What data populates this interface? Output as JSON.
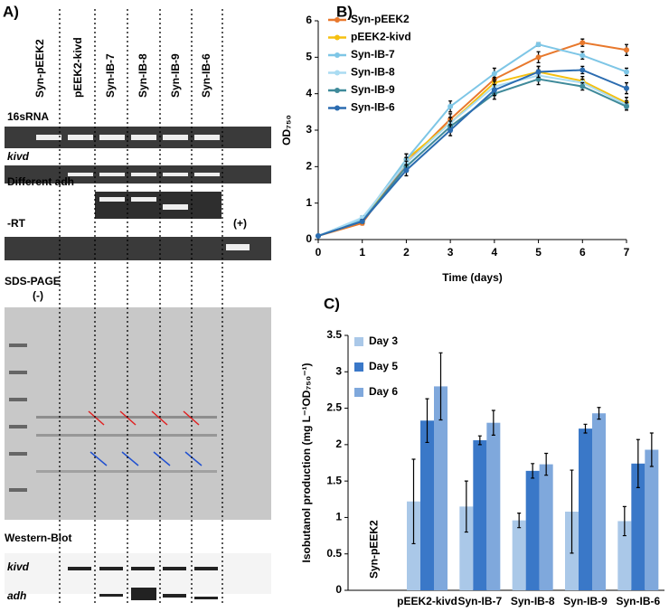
{
  "panel_a": {
    "label": "A)",
    "lanes": [
      "Syn-pEEK2",
      "pEEK2-kivd",
      "Syn-IB-7",
      "Syn-IB-8",
      "Syn-IB-9",
      "Syn-IB-6"
    ],
    "blots": [
      "16sRNA",
      "kivd",
      "Different adh",
      "-RT"
    ],
    "rt_positive": "(+)",
    "sds_page": "SDS-PAGE",
    "negative": "(-)",
    "western_blot": "Western-Blot",
    "western_rows": [
      "kivd",
      "adh"
    ]
  },
  "chart_data": [
    {
      "type": "line",
      "panel_label": "B)",
      "xlabel": "Time (days)",
      "ylabel": "OD₇₅₀",
      "x": [
        0,
        1,
        2,
        3,
        4,
        5,
        6,
        7
      ],
      "xlim": [
        0,
        7
      ],
      "xticks": [
        0,
        1,
        2,
        3,
        4,
        5,
        6,
        7
      ],
      "ylim": [
        0,
        6
      ],
      "yticks": [
        0,
        1,
        2,
        3,
        4,
        5,
        6
      ],
      "legend": "upper left",
      "series": [
        {
          "name": "Syn-pEEK2",
          "color": "#e8782c",
          "values": [
            0.1,
            0.45,
            2.1,
            3.3,
            4.4,
            5.0,
            5.4,
            5.2
          ],
          "errors": [
            0.02,
            0.05,
            0.15,
            0.15,
            0.15,
            0.15,
            0.1,
            0.15
          ]
        },
        {
          "name": "pEEK2-kivd",
          "color": "#f5c010",
          "values": [
            0.1,
            0.5,
            2.2,
            3.2,
            4.3,
            4.6,
            4.35,
            3.75
          ],
          "errors": [
            0.02,
            0.05,
            0.15,
            0.15,
            0.15,
            0.15,
            0.12,
            0.15
          ]
        },
        {
          "name": "Syn-IB-7",
          "color": "#7ec6e6",
          "values": [
            0.1,
            0.55,
            2.2,
            3.65,
            4.55,
            5.35,
            5.05,
            4.6
          ],
          "errors": [
            0.02,
            0.05,
            0.15,
            0.15,
            0.15,
            0.05,
            0.1,
            0.1
          ]
        },
        {
          "name": "Syn-IB-8",
          "color": "#aadcf2",
          "values": [
            0.1,
            0.6,
            2.1,
            3.2,
            4.2,
            4.5,
            4.3,
            3.7
          ],
          "errors": [
            0.02,
            0.05,
            0.15,
            0.15,
            0.15,
            0.15,
            0.1,
            0.1
          ]
        },
        {
          "name": "Syn-IB-9",
          "color": "#3f8a9a",
          "values": [
            0.1,
            0.5,
            2.0,
            3.1,
            4.0,
            4.4,
            4.2,
            3.65
          ],
          "errors": [
            0.02,
            0.05,
            0.15,
            0.15,
            0.15,
            0.15,
            0.1,
            0.1
          ]
        },
        {
          "name": "Syn-IB-6",
          "color": "#2b6cb0",
          "values": [
            0.1,
            0.5,
            1.9,
            3.0,
            4.1,
            4.6,
            4.65,
            4.15
          ],
          "errors": [
            0.02,
            0.05,
            0.15,
            0.15,
            0.15,
            0.15,
            0.1,
            0.15
          ]
        }
      ]
    },
    {
      "type": "bar",
      "panel_label": "C)",
      "ylabel": "Isobutanol production (mg L⁻¹OD₇₅₀⁻¹)",
      "categories": [
        "Syn-pEEK2",
        "pEEK2-kivd",
        "Syn-IB-7",
        "Syn-IB-8",
        "Syn-IB-9",
        "Syn-IB-6"
      ],
      "ylim": [
        0,
        3.5
      ],
      "yticks": [
        0,
        0.5,
        1,
        1.5,
        2,
        2.5,
        3,
        3.5
      ],
      "legend": "upper left",
      "series": [
        {
          "name": "Day 3",
          "color": "#aac8e8",
          "values": [
            0,
            1.22,
            1.15,
            0.96,
            1.08,
            0.95
          ],
          "errors": [
            0,
            0.58,
            0.35,
            0.1,
            0.57,
            0.2
          ]
        },
        {
          "name": "Day 5",
          "color": "#3a78c8",
          "values": [
            0,
            2.33,
            2.06,
            1.64,
            2.22,
            1.74
          ],
          "errors": [
            0,
            0.3,
            0.06,
            0.1,
            0.06,
            0.33
          ]
        },
        {
          "name": "Day 6",
          "color": "#7fa8dc",
          "values": [
            0,
            2.8,
            2.3,
            1.73,
            2.43,
            1.93
          ],
          "errors": [
            0,
            0.46,
            0.17,
            0.15,
            0.08,
            0.23
          ]
        }
      ]
    }
  ]
}
